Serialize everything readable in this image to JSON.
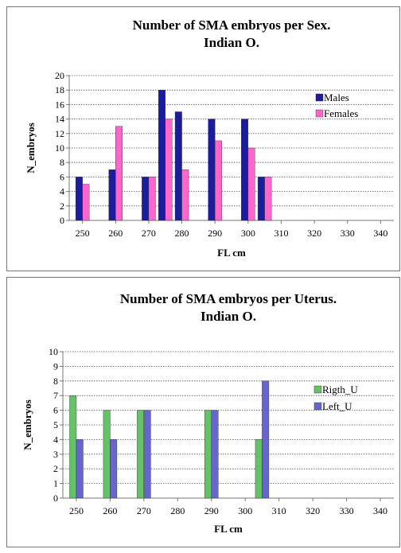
{
  "chart_data": [
    {
      "type": "bar",
      "title": "Number of SMA  embryos per Sex.",
      "subtitle": "Indian O.",
      "xlabel": "FL cm",
      "ylabel": "N_embryos",
      "xlim": [
        246,
        344
      ],
      "ylim": [
        0,
        20
      ],
      "ystep": 2,
      "xticks": [
        250,
        260,
        270,
        280,
        290,
        300,
        310,
        320,
        330,
        340
      ],
      "grid": true,
      "legend_position": "top-right",
      "series": [
        {
          "name": "Males",
          "color": "#1c1c9e",
          "points": [
            [
              250,
              6
            ],
            [
              260,
              7
            ],
            [
              270,
              6
            ],
            [
              275,
              18
            ],
            [
              280,
              15
            ],
            [
              290,
              14
            ],
            [
              300,
              14
            ],
            [
              305,
              6
            ]
          ]
        },
        {
          "name": "Females",
          "color": "#ff66cc",
          "points": [
            [
              250,
              5
            ],
            [
              260,
              13
            ],
            [
              270,
              6
            ],
            [
              275,
              14
            ],
            [
              280,
              7
            ],
            [
              290,
              11
            ],
            [
              300,
              10
            ],
            [
              305,
              6
            ]
          ]
        }
      ]
    },
    {
      "type": "bar",
      "title": "Number of SMA embryos per Uterus.",
      "subtitle": "Indian O.",
      "xlabel": "FL cm",
      "ylabel": "N_embryos",
      "xlim": [
        246,
        344
      ],
      "ylim": [
        0,
        10
      ],
      "ystep": 1,
      "xticks": [
        250,
        260,
        270,
        280,
        290,
        300,
        310,
        320,
        330,
        340
      ],
      "grid": true,
      "legend_position": "top-right",
      "series": [
        {
          "name": "Rigth_U",
          "color": "#66c266",
          "points": [
            [
              250,
              7
            ],
            [
              260,
              6
            ],
            [
              270,
              6
            ],
            [
              290,
              6
            ],
            [
              305,
              4
            ]
          ]
        },
        {
          "name": "Left_U",
          "color": "#6666cc",
          "points": [
            [
              250,
              4
            ],
            [
              260,
              4
            ],
            [
              270,
              6
            ],
            [
              290,
              6
            ],
            [
              305,
              8
            ]
          ]
        }
      ]
    }
  ]
}
